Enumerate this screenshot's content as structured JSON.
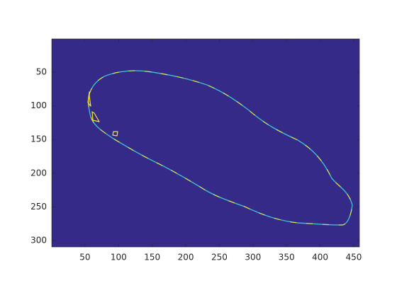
{
  "chart_data": {
    "type": "image",
    "xlim": [
      0.5,
      458.5
    ],
    "ylim": [
      0.5,
      309.5
    ],
    "y_reversed": true,
    "xticks": [
      50,
      100,
      150,
      200,
      250,
      300,
      350,
      400,
      450
    ],
    "yticks": [
      50,
      100,
      150,
      200,
      250,
      300
    ],
    "background_color": "#352a87"
  }
}
